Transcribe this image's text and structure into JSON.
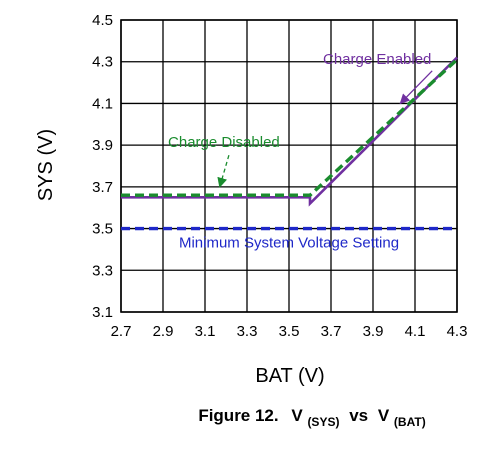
{
  "figure": {
    "caption_prefix": "Figure 12.",
    "caption_v1": "V",
    "caption_sub1": "(SYS)",
    "caption_mid": "vs",
    "caption_v2": "V",
    "caption_sub2": "(BAT)"
  },
  "chart_data": {
    "type": "line",
    "title": "",
    "xlabel": "BAT (V)",
    "ylabel": "SYS (V)",
    "xlim": [
      2.7,
      4.3
    ],
    "ylim": [
      3.1,
      4.5
    ],
    "xticks": [
      "2.7",
      "2.9",
      "3.1",
      "3.3",
      "3.5",
      "3.7",
      "3.9",
      "4.1",
      "4.3"
    ],
    "yticks": [
      "3.1",
      "3.3",
      "3.5",
      "3.7",
      "3.9",
      "4.1",
      "4.3",
      "4.5"
    ],
    "grid": true,
    "colors": {
      "charge_enabled": "#7030a0",
      "charge_disabled": "#1a8c2e",
      "minimum_system": "#1f28c8"
    },
    "series": [
      {
        "name": "Charge Enabled",
        "style": "solid",
        "x": [
          2.7,
          3.6,
          3.6,
          4.3
        ],
        "y": [
          3.65,
          3.65,
          3.62,
          4.32
        ]
      },
      {
        "name": "Charge Disabled",
        "style": "dashed",
        "x": [
          2.7,
          3.6,
          4.3
        ],
        "y": [
          3.66,
          3.66,
          4.31
        ]
      },
      {
        "name": "Minimum System Voltage Setting",
        "style": "dashed",
        "x": [
          2.7,
          4.3
        ],
        "y": [
          3.5,
          3.5
        ]
      }
    ],
    "annotations": [
      {
        "text": "Charge Enabled",
        "x": 3.92,
        "y": 4.29,
        "arrow_to": [
          4.03,
          4.1
        ],
        "color": "charge_enabled",
        "arrow_style": "solid"
      },
      {
        "text": "Charge Disabled",
        "x": 3.19,
        "y": 3.89,
        "arrow_to": [
          3.17,
          3.7
        ],
        "color": "charge_disabled",
        "arrow_style": "dashed"
      },
      {
        "text": "Minimum System Voltage Setting",
        "x": 3.5,
        "y": 3.41,
        "color": "minimum_system"
      }
    ]
  }
}
